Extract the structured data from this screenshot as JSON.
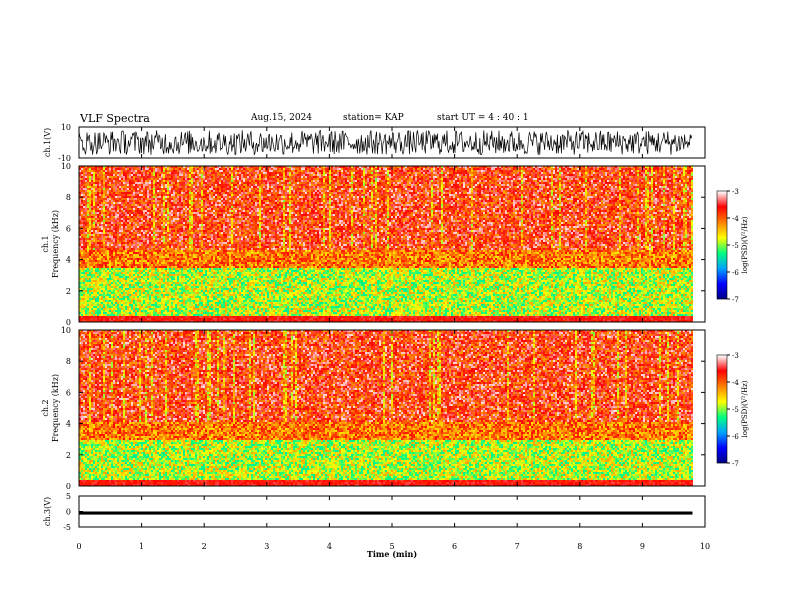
{
  "header": {
    "title": "VLF Spectra",
    "date": "Aug.15, 2024",
    "station": "station= KAP",
    "start_ut": "start  UT  =   4 : 40 : 1"
  },
  "chart_data": [
    {
      "type": "line",
      "panel": "ch1-waveform",
      "ylabel": "ch.1(V)",
      "ylim": [
        -10,
        10
      ],
      "yticks": [
        "10",
        "-10"
      ],
      "xlim": [
        0,
        10
      ],
      "data_extent_min": 9.8,
      "amplitude_range_V": [
        -8,
        8
      ],
      "color": "#000000"
    },
    {
      "type": "heatmap",
      "panel": "ch1-spectrogram",
      "ylabel": "ch.1\nFrequency  (kHz)",
      "ylim": [
        0,
        10
      ],
      "yticks": [
        "0",
        "2",
        "4",
        "6",
        "8",
        "10"
      ],
      "xlim": [
        0,
        10
      ],
      "data_extent_min": 9.8,
      "colorbar": {
        "label": "log(PSD)(V²/Hz)",
        "range": [
          -7,
          -3
        ],
        "ticks": [
          "-3",
          "-4",
          "-5",
          "-6",
          "-7"
        ],
        "colors": [
          "#000080",
          "#0000ff",
          "#00a0ff",
          "#00ff80",
          "#ffff00",
          "#ff8000",
          "#ff0000",
          "#ffffff"
        ]
      },
      "dominant_band_kHz": [
        0.5,
        3.5
      ]
    },
    {
      "type": "heatmap",
      "panel": "ch2-spectrogram",
      "ylabel": "ch.2\nFrequency  (kHz)",
      "ylim": [
        0,
        10
      ],
      "yticks": [
        "0",
        "2",
        "4",
        "6",
        "8",
        "10"
      ],
      "xlim": [
        0,
        10
      ],
      "data_extent_min": 9.8,
      "colorbar": {
        "label": "log(PSD)(V²/Hz)",
        "range": [
          -7,
          -3
        ],
        "ticks": [
          "-3",
          "-4",
          "-5",
          "-6",
          "-7"
        ],
        "colors": [
          "#000080",
          "#0000ff",
          "#00a0ff",
          "#00ff80",
          "#ffff00",
          "#ff8000",
          "#ff0000",
          "#ffffff"
        ]
      },
      "dominant_band_kHz": [
        0.5,
        3.0
      ]
    },
    {
      "type": "line",
      "panel": "ch3-waveform",
      "ylabel": "ch.3(V)",
      "ylim": [
        -5,
        5
      ],
      "yticks": [
        "5",
        "0",
        "-5"
      ],
      "xlim": [
        0,
        10
      ],
      "data_extent_min": 9.8,
      "trace_level_V": -0.5,
      "trace_thickness_V": 1.0,
      "xlabel": "Time  (min)",
      "xticks": [
        "0",
        "1",
        "2",
        "3",
        "4",
        "5",
        "6",
        "7",
        "8",
        "9",
        "10"
      ],
      "color": "#000000"
    }
  ]
}
